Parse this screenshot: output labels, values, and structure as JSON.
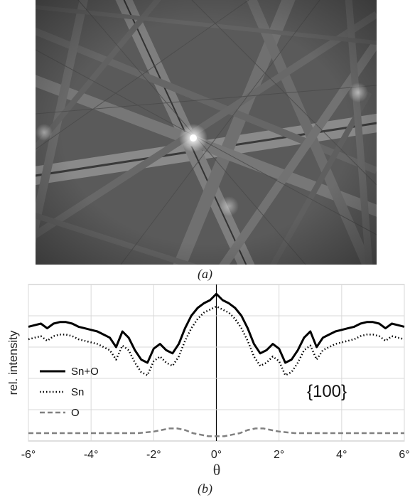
{
  "figure": {
    "caption_a": "(a)",
    "caption_b": "(b)",
    "ebsd_pattern_alt": "Kikuchi diffraction pattern"
  },
  "chart_data": {
    "type": "line",
    "annotation": "{100}",
    "xlabel": "θ",
    "ylabel": "rel. intensity",
    "xlim": [
      -6,
      6
    ],
    "ylim": [
      0,
      1
    ],
    "x_ticks": [
      "-6°",
      "-4°",
      "-2°",
      "0°",
      "2°",
      "4°",
      "6°"
    ],
    "grid": true,
    "legend_placement": "left",
    "series": [
      {
        "name": "Sn+O",
        "style": "solid",
        "color": "#000000",
        "x": [
          -6,
          -5.8,
          -5.6,
          -5.4,
          -5.2,
          -5.0,
          -4.8,
          -4.6,
          -4.4,
          -4.2,
          -4.0,
          -3.8,
          -3.6,
          -3.4,
          -3.2,
          -3.0,
          -2.8,
          -2.6,
          -2.4,
          -2.2,
          -2.0,
          -1.8,
          -1.6,
          -1.4,
          -1.2,
          -1.0,
          -0.8,
          -0.6,
          -0.4,
          -0.2,
          0,
          0.2,
          0.4,
          0.6,
          0.8,
          1.0,
          1.2,
          1.4,
          1.6,
          1.8,
          2.0,
          2.2,
          2.4,
          2.6,
          2.8,
          3.0,
          3.2,
          3.4,
          3.6,
          3.8,
          4.0,
          4.2,
          4.4,
          4.6,
          4.8,
          5.0,
          5.2,
          5.4,
          5.6,
          5.8,
          6.0
        ],
        "y": [
          0.73,
          0.74,
          0.75,
          0.72,
          0.75,
          0.76,
          0.76,
          0.75,
          0.73,
          0.72,
          0.71,
          0.7,
          0.68,
          0.66,
          0.6,
          0.7,
          0.66,
          0.58,
          0.52,
          0.5,
          0.59,
          0.62,
          0.58,
          0.56,
          0.62,
          0.72,
          0.8,
          0.85,
          0.88,
          0.9,
          0.94,
          0.9,
          0.88,
          0.85,
          0.8,
          0.72,
          0.62,
          0.56,
          0.58,
          0.62,
          0.59,
          0.5,
          0.52,
          0.58,
          0.66,
          0.7,
          0.6,
          0.66,
          0.68,
          0.7,
          0.71,
          0.72,
          0.73,
          0.75,
          0.76,
          0.76,
          0.75,
          0.72,
          0.75,
          0.74,
          0.73
        ]
      },
      {
        "name": "Sn",
        "style": "dotted",
        "color": "#000000",
        "x": [
          -6,
          -5.8,
          -5.6,
          -5.4,
          -5.2,
          -5.0,
          -4.8,
          -4.6,
          -4.4,
          -4.2,
          -4.0,
          -3.8,
          -3.6,
          -3.4,
          -3.2,
          -3.0,
          -2.8,
          -2.6,
          -2.4,
          -2.2,
          -2.0,
          -1.8,
          -1.6,
          -1.4,
          -1.2,
          -1.0,
          -0.8,
          -0.6,
          -0.4,
          -0.2,
          0,
          0.2,
          0.4,
          0.6,
          0.8,
          1.0,
          1.2,
          1.4,
          1.6,
          1.8,
          2.0,
          2.2,
          2.4,
          2.6,
          2.8,
          3.0,
          3.2,
          3.4,
          3.6,
          3.8,
          4.0,
          4.2,
          4.4,
          4.6,
          4.8,
          5.0,
          5.2,
          5.4,
          5.6,
          5.8,
          6.0
        ],
        "y": [
          0.65,
          0.66,
          0.67,
          0.64,
          0.67,
          0.68,
          0.68,
          0.67,
          0.65,
          0.64,
          0.63,
          0.62,
          0.6,
          0.58,
          0.52,
          0.61,
          0.58,
          0.5,
          0.44,
          0.42,
          0.51,
          0.54,
          0.5,
          0.48,
          0.54,
          0.64,
          0.72,
          0.78,
          0.82,
          0.84,
          0.86,
          0.84,
          0.82,
          0.78,
          0.72,
          0.64,
          0.54,
          0.48,
          0.5,
          0.54,
          0.51,
          0.42,
          0.44,
          0.5,
          0.58,
          0.61,
          0.52,
          0.58,
          0.6,
          0.62,
          0.63,
          0.64,
          0.65,
          0.67,
          0.68,
          0.68,
          0.67,
          0.64,
          0.67,
          0.66,
          0.65
        ]
      },
      {
        "name": "O",
        "style": "dashed",
        "color": "#808080",
        "x": [
          -6,
          -5.5,
          -5,
          -4.5,
          -4,
          -3.5,
          -3,
          -2.5,
          -2,
          -1.75,
          -1.5,
          -1.25,
          -1,
          -0.75,
          -0.5,
          -0.25,
          0,
          0.25,
          0.5,
          0.75,
          1,
          1.25,
          1.5,
          1.75,
          2,
          2.5,
          3,
          3.5,
          4,
          4.5,
          5,
          5.5,
          6
        ],
        "y": [
          0.05,
          0.05,
          0.05,
          0.05,
          0.05,
          0.05,
          0.05,
          0.05,
          0.06,
          0.07,
          0.08,
          0.08,
          0.07,
          0.05,
          0.04,
          0.03,
          0.03,
          0.03,
          0.04,
          0.05,
          0.07,
          0.08,
          0.08,
          0.07,
          0.06,
          0.05,
          0.05,
          0.05,
          0.05,
          0.05,
          0.05,
          0.05,
          0.05
        ]
      }
    ]
  }
}
